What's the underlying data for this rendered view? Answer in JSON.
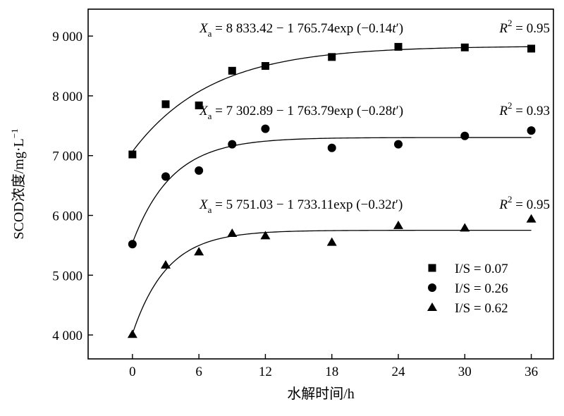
{
  "chart_data": {
    "type": "scatter",
    "xlabel": "水解时间/h",
    "ylabel": "SCOD浓度/mg·L⁻¹",
    "ylabel_parts": {
      "main": "SCOD浓度/mg·L",
      "sup": "−1"
    },
    "xlim": [
      -4,
      38
    ],
    "ylim": [
      3600,
      9450
    ],
    "x_ticks": [
      0,
      6,
      12,
      18,
      24,
      30,
      36
    ],
    "x_tick_labels": [
      "0",
      "6",
      "12",
      "18",
      "24",
      "30",
      "36"
    ],
    "y_ticks": [
      4000,
      5000,
      6000,
      7000,
      8000,
      9000
    ],
    "y_tick_labels": [
      "4 000",
      "5 000",
      "6 000",
      "7 000",
      "8 000",
      "9 000"
    ],
    "grid": false,
    "legend_position": "lower-right",
    "series": [
      {
        "name": "I/S = 0.07",
        "marker": "square",
        "points": [
          [
            0,
            7020
          ],
          [
            3,
            7860
          ],
          [
            6,
            7840
          ],
          [
            9,
            8420
          ],
          [
            12,
            8500
          ],
          [
            18,
            8650
          ],
          [
            24,
            8820
          ],
          [
            30,
            8810
          ],
          [
            36,
            8790
          ]
        ],
        "fit": {
          "a": 8833.42,
          "b": 1765.74,
          "k": 0.14
        },
        "equation": {
          "var": "X",
          "sub": "a",
          "rhs_pre": " = 8 833.42 − 1 765.74exp (−0.14",
          "t": "t",
          "rhs_post": "′)",
          "r2_label": "R",
          "r2_sup": "2",
          "r2_value": " = 0.95"
        }
      },
      {
        "name": "I/S = 0.26",
        "marker": "circle",
        "points": [
          [
            0,
            5520
          ],
          [
            3,
            6650
          ],
          [
            6,
            6750
          ],
          [
            9,
            7190
          ],
          [
            12,
            7450
          ],
          [
            18,
            7130
          ],
          [
            24,
            7190
          ],
          [
            30,
            7330
          ],
          [
            36,
            7420
          ]
        ],
        "fit": {
          "a": 7302.89,
          "b": 1763.79,
          "k": 0.28
        },
        "equation": {
          "var": "X",
          "sub": "a",
          "rhs_pre": " = 7 302.89 − 1 763.79exp (−0.28",
          "t": "t",
          "rhs_post": "′)",
          "r2_label": "R",
          "r2_sup": "2",
          "r2_value": " = 0.93"
        }
      },
      {
        "name": "I/S = 0.62",
        "marker": "triangle",
        "points": [
          [
            0,
            4010
          ],
          [
            3,
            5170
          ],
          [
            6,
            5390
          ],
          [
            9,
            5700
          ],
          [
            12,
            5660
          ],
          [
            18,
            5550
          ],
          [
            24,
            5830
          ],
          [
            30,
            5790
          ],
          [
            36,
            5940
          ]
        ],
        "fit": {
          "a": 5751.03,
          "b": 1733.11,
          "k": 0.32
        },
        "equation": {
          "var": "X",
          "sub": "a",
          "rhs_pre": " = 5 751.03 − 1 733.11exp (−0.32",
          "t": "t",
          "rhs_post": "′)",
          "r2_label": "R",
          "r2_sup": "2",
          "r2_value": " = 0.95"
        }
      }
    ]
  }
}
